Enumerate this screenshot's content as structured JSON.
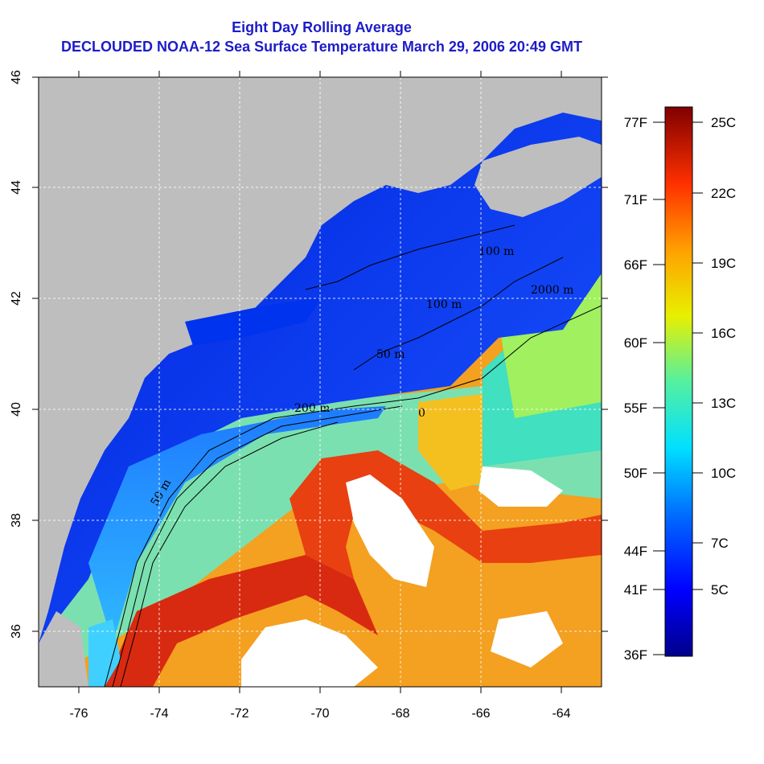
{
  "title_line1": "Eight Day Rolling Average",
  "title_line2": "DECLOUDED NOAA-12 Sea Surface Temperature March 29, 2006 20:49 GMT",
  "x_ticks": [
    "-76",
    "-74",
    "-72",
    "-70",
    "-68",
    "-66",
    "-64"
  ],
  "y_ticks": [
    "46",
    "44",
    "42",
    "40",
    "38",
    "36"
  ],
  "contour_labels": [
    "100 m",
    "2000 m",
    "100 m",
    "50 m",
    "200 m",
    "0",
    "50 m"
  ],
  "colorbar": {
    "fahrenheit_labels": [
      "77F",
      "71F",
      "66F",
      "60F",
      "55F",
      "50F",
      "44F",
      "41F",
      "36F"
    ],
    "celsius_labels": [
      "25C",
      "22C",
      "19C",
      "16C",
      "13C",
      "10C",
      "7C",
      "5C"
    ]
  },
  "colors": {
    "title": "#1c1cc8",
    "land": "#bebebe",
    "cloud": "#ffffff"
  },
  "chart_data": {
    "type": "heatmap",
    "variable": "Sea Surface Temperature",
    "xlim": [
      -77,
      -63
    ],
    "ylim": [
      35,
      46
    ],
    "temperature_range_C": [
      2,
      26
    ],
    "gridlines": "dotted white at 2 degree intervals"
  }
}
